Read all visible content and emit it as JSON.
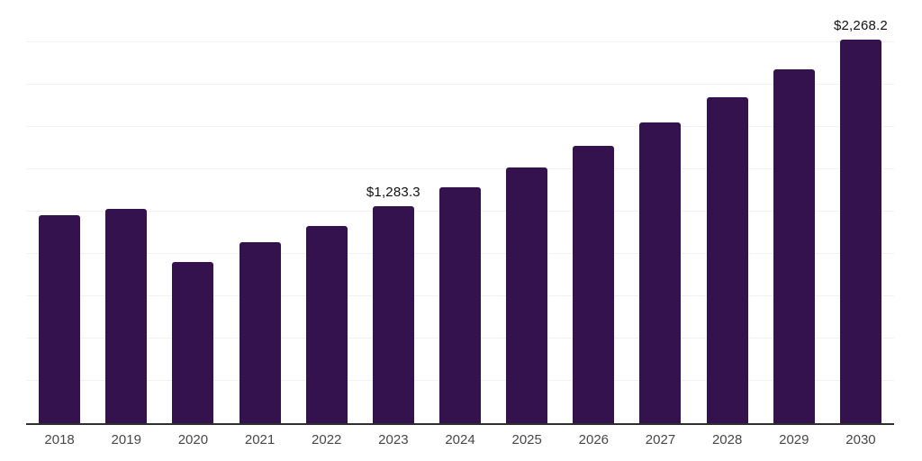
{
  "chart_data": {
    "type": "bar",
    "title": "",
    "xlabel": "",
    "ylabel": "",
    "categories": [
      "2018",
      "2019",
      "2020",
      "2021",
      "2022",
      "2023",
      "2024",
      "2025",
      "2026",
      "2027",
      "2028",
      "2029",
      "2030"
    ],
    "values": [
      1228.5,
      1266.5,
      952.0,
      1068.0,
      1166.0,
      1283.3,
      1392.1,
      1510.2,
      1638.3,
      1777.2,
      1928.0,
      2091.5,
      2268.2
    ],
    "labeled_points": [
      {
        "category": "2023",
        "label": "$1,283.3"
      },
      {
        "category": "2030",
        "label": "$2,268.2"
      }
    ],
    "ylim": [
      0,
      2500
    ],
    "grid_step": 250,
    "grid": "horizontal-only",
    "legend_position": "none",
    "colors": {
      "bar": "#34124E",
      "axis_line": "#2e2e2e",
      "gridline": "#f2f2f2",
      "tick_label": "#474747",
      "data_label": "#111111",
      "background": "#ffffff"
    }
  }
}
